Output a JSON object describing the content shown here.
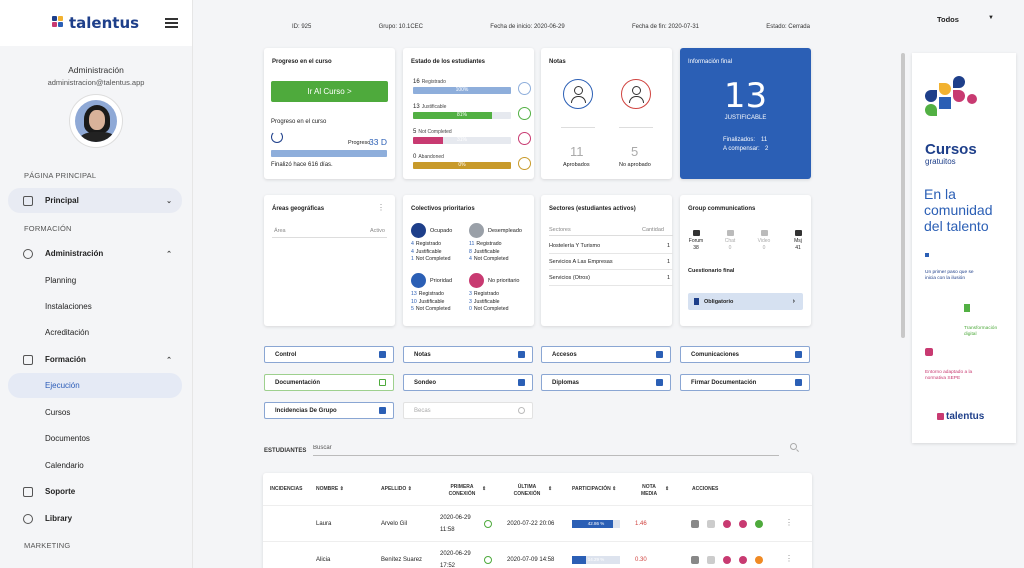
{
  "brand": {
    "name": "talentus"
  },
  "user": {
    "name": "Administración",
    "email": "administracion@talentus.app"
  },
  "sidebar": {
    "sections": [
      "PÁGINA PRINCIPAL",
      "FORMACIÓN",
      "MARKETING"
    ],
    "items": [
      {
        "label": "Principal",
        "icon": "home-icon"
      },
      {
        "label": "Administración",
        "icon": "admin-icon"
      },
      {
        "label": "Planning"
      },
      {
        "label": "Instalaciones"
      },
      {
        "label": "Acreditación"
      },
      {
        "label": "Formación",
        "icon": "book-icon"
      },
      {
        "label": "Ejecución"
      },
      {
        "label": "Cursos"
      },
      {
        "label": "Documentos"
      },
      {
        "label": "Calendario"
      },
      {
        "label": "Soporte",
        "icon": "support-icon"
      },
      {
        "label": "Library",
        "icon": "info-icon"
      }
    ]
  },
  "group_info": {
    "id": "ID: 925",
    "grupo": "Grupo: 10.1CEC",
    "inicio": "Fecha de inicio: 2020-06-29",
    "fin": "Fecha de fin: 2020-07-31",
    "estado": "Estado: Cerrada"
  },
  "filter": {
    "selected": "Todos"
  },
  "course_progress": {
    "title": "Progreso en el curso",
    "button": "Ir Al Curso >",
    "subtitle": "Progreso en el curso",
    "progress_label": "Progreso",
    "progress_value": "33 D",
    "progress_fraction": 1.0,
    "finished": "Finalizó hace 616 días."
  },
  "student_status": {
    "title": "Estado de los estudiantes",
    "rows": [
      {
        "count": "16",
        "label": "Registrado",
        "pct": "100%",
        "value": 100,
        "color": "#8eaedb"
      },
      {
        "count": "13",
        "label": "Justificable",
        "pct": "81%",
        "value": 81,
        "color": "#52b043"
      },
      {
        "count": "5",
        "label": "Not Completed",
        "pct": "31%",
        "value": 31,
        "color": "#c83a71"
      },
      {
        "count": "0",
        "label": "Abandoned",
        "pct": "0%",
        "value": 0,
        "color": "#c89a2a"
      }
    ]
  },
  "notes": {
    "title": "Notas",
    "approved_count": "11",
    "approved_label": "Aprobados",
    "failed_count": "5",
    "failed_label": "No aprobado"
  },
  "final_info": {
    "title": "Información final",
    "value": "13",
    "label": "JUSTIFICABLE",
    "finalizados_label": "Finalizados:",
    "finalizados": "11",
    "compensar_label": "A compensar:",
    "compensar": "2"
  },
  "geo": {
    "title": "Áreas geográficas",
    "col_area": "Área",
    "col_active": "Activo"
  },
  "priority": {
    "title": "Colectivos prioritarios",
    "groups": [
      {
        "label": "Ocupado",
        "registrado": "4",
        "justificable": "4",
        "not_completed": "1",
        "color": "#1e3f8a"
      },
      {
        "label": "Desempleado",
        "registrado": "11",
        "justificable": "8",
        "not_completed": "4",
        "color": "#9aa0a8"
      },
      {
        "label": "Prioridad",
        "registrado": "13",
        "justificable": "10",
        "not_completed": "5",
        "color": "#2b5fb5"
      },
      {
        "label": "No prioritario",
        "registrado": "3",
        "justificable": "3",
        "not_completed": "0",
        "color": "#c83a71"
      }
    ],
    "lbl_registrado": "Registrado",
    "lbl_justificable": "Justificable",
    "lbl_not_completed": "Not Completed"
  },
  "sectors": {
    "title": "Sectores (estudiantes activos)",
    "col_sector": "Sectores",
    "col_qty": "Cantidad",
    "rows": [
      {
        "name": "Hostelería Y Turismo",
        "qty": "1"
      },
      {
        "name": "Servicios A Las Empresas",
        "qty": "1"
      },
      {
        "name": "Servicios (Otros)",
        "qty": "1"
      }
    ]
  },
  "communications": {
    "title": "Group communications",
    "items": [
      {
        "label": "Forum",
        "count": "38",
        "enabled": true
      },
      {
        "label": "Chat",
        "count": "0",
        "enabled": false
      },
      {
        "label": "Video",
        "count": "0",
        "enabled": false
      },
      {
        "label": "Msj",
        "count": "41",
        "enabled": true
      }
    ],
    "questionnaire_title": "Cuestionario final",
    "questionnaire_button": "Obligatorio"
  },
  "actions": [
    {
      "label": "Control"
    },
    {
      "label": "Notas"
    },
    {
      "label": "Accesos"
    },
    {
      "label": "Comunicaciones"
    },
    {
      "label": "Documentación"
    },
    {
      "label": "Sondeo"
    },
    {
      "label": "Diplomas"
    },
    {
      "label": "Firmar Documentación"
    },
    {
      "label": "Incidencias De Grupo"
    },
    {
      "label": "Becas"
    }
  ],
  "students": {
    "title": "ESTUDIANTES",
    "search_placeholder": "Buscar",
    "headers": {
      "incidencias": "INCIDENCIAS",
      "nombre": "NOMBRE",
      "apellido": "APELLIDO",
      "primera": "PRIMERA CONEXIÓN",
      "ultima": "ÚLTIMA CONEXIÓN",
      "participacion": "PARTICIPACIÓN",
      "nota": "NOTA MEDIA",
      "acciones": "ACCIONES"
    },
    "rows": [
      {
        "nombre": "Laura",
        "apellido": "Arvelo Gil",
        "primera_date": "2020-06-29",
        "primera_time": "11:58",
        "ultima": "2020-07-22 20:06",
        "participacion": "42.86 %",
        "participacion_value": 42.86,
        "nota": "1.46"
      },
      {
        "nombre": "Alicia",
        "apellido": "Benítez Suarez",
        "primera_date": "2020-06-29",
        "primera_time": "17:52",
        "ultima": "2020-07-09 14:58",
        "participacion": "14.29 %",
        "participacion_value": 14.29,
        "nota": "0.30"
      }
    ]
  },
  "ad": {
    "title": "Cursos",
    "subtitle": "gratuitos",
    "headline": "En la comunidad del talento",
    "points": [
      "Un primer paso que se inicia con la ilusión",
      "Transformación digital",
      "Entorno adaptado a la normativa SEPE"
    ]
  },
  "colors": {
    "primary": "#2b5fb5",
    "green": "#4eaa3c",
    "pink": "#c83a71",
    "navy": "#1e3f8a"
  }
}
